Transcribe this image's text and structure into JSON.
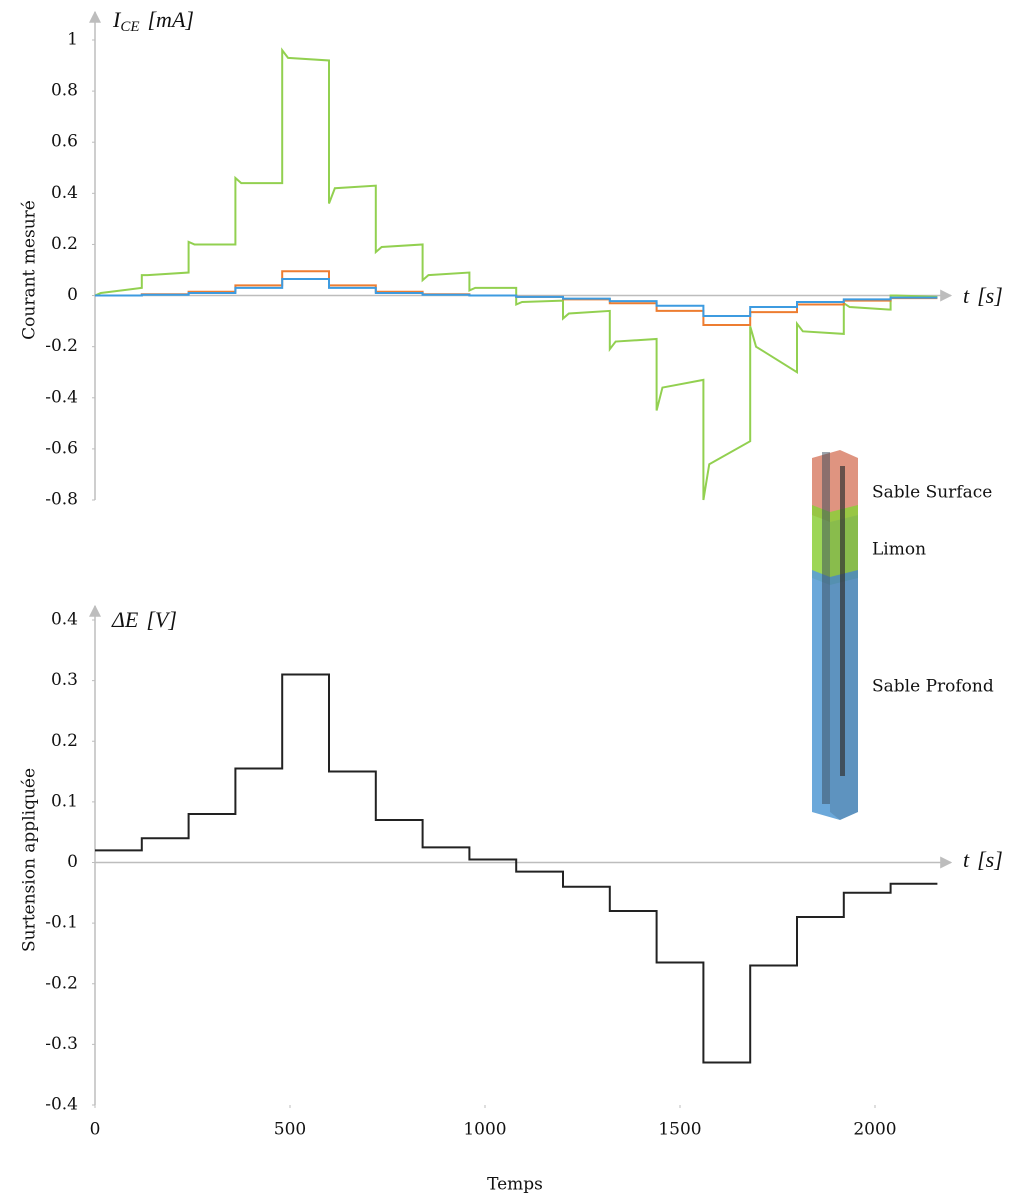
{
  "chart_data": [
    {
      "type": "line",
      "y_title": "Courant mesuré",
      "y_axis_label": {
        "symbol": "I",
        "subscript": "CE",
        "unit": "[mA]"
      },
      "x_axis_label": {
        "symbol": "t",
        "unit": "[s]"
      },
      "xlim": [
        0,
        2200
      ],
      "ylim": [
        -0.8,
        1
      ],
      "yticks": [
        1,
        0.8,
        0.6,
        0.4,
        0.2,
        0,
        -0.2,
        -0.4,
        -0.6,
        -0.8
      ],
      "x": [
        0,
        15,
        120,
        120,
        135,
        240,
        240,
        255,
        360,
        360,
        375,
        480,
        480,
        495,
        600,
        600,
        615,
        720,
        720,
        735,
        840,
        840,
        855,
        960,
        960,
        975,
        1080,
        1080,
        1095,
        1200,
        1200,
        1215,
        1320,
        1320,
        1335,
        1440,
        1440,
        1455,
        1560,
        1560,
        1575,
        1680,
        1680,
        1695,
        1800,
        1800,
        1815,
        1920,
        1920,
        1935,
        2040,
        2040,
        2055,
        2160
      ],
      "series": [
        {
          "name": "Limon",
          "color": "#92d050",
          "values": [
            0,
            0.01,
            0.03,
            0.08,
            0.08,
            0.09,
            0.21,
            0.2,
            0.2,
            0.46,
            0.44,
            0.44,
            0.96,
            0.93,
            0.92,
            0.36,
            0.42,
            0.43,
            0.17,
            0.19,
            0.2,
            0.06,
            0.08,
            0.09,
            0.02,
            0.03,
            0.03,
            -0.035,
            -0.025,
            -0.02,
            -0.09,
            -0.07,
            -0.06,
            -0.21,
            -0.18,
            -0.17,
            -0.45,
            -0.36,
            -0.33,
            -0.8,
            -0.66,
            -0.57,
            -0.12,
            -0.2,
            -0.3,
            -0.11,
            -0.14,
            -0.15,
            -0.03,
            -0.045,
            -0.055,
            0,
            0,
            -0.005
          ]
        },
        {
          "name": "Sable Surface",
          "color": "#ed7d31",
          "values": [
            0,
            0,
            0,
            0.005,
            0.005,
            0.005,
            0.015,
            0.015,
            0.015,
            0.04,
            0.04,
            0.04,
            0.095,
            0.095,
            0.095,
            0.04,
            0.04,
            0.04,
            0.015,
            0.015,
            0.015,
            0.005,
            0.005,
            0.005,
            0,
            0,
            0,
            -0.005,
            -0.005,
            -0.005,
            -0.015,
            -0.015,
            -0.015,
            -0.03,
            -0.03,
            -0.03,
            -0.06,
            -0.06,
            -0.06,
            -0.115,
            -0.115,
            -0.115,
            -0.065,
            -0.065,
            -0.065,
            -0.035,
            -0.035,
            -0.035,
            -0.02,
            -0.02,
            -0.02,
            -0.01,
            -0.01,
            -0.01
          ]
        },
        {
          "name": "Sable Profond",
          "color": "#3d9be0",
          "values": [
            0,
            0,
            0,
            0.003,
            0.003,
            0.003,
            0.01,
            0.01,
            0.01,
            0.03,
            0.03,
            0.03,
            0.065,
            0.065,
            0.065,
            0.03,
            0.03,
            0.03,
            0.01,
            0.01,
            0.01,
            0.003,
            0.003,
            0.003,
            0,
            0,
            0,
            -0.005,
            -0.005,
            -0.005,
            -0.012,
            -0.012,
            -0.012,
            -0.022,
            -0.022,
            -0.022,
            -0.04,
            -0.04,
            -0.04,
            -0.08,
            -0.08,
            -0.08,
            -0.045,
            -0.045,
            -0.045,
            -0.025,
            -0.025,
            -0.025,
            -0.015,
            -0.015,
            -0.015,
            -0.008,
            -0.008,
            -0.008
          ]
        }
      ]
    },
    {
      "type": "line",
      "y_title": "Surtension appliquée",
      "x_title": "Temps",
      "y_axis_label": {
        "symbol": "ΔE",
        "unit": "[V]"
      },
      "x_axis_label": {
        "symbol": "t",
        "unit": "[s]"
      },
      "xlim": [
        0,
        2200
      ],
      "ylim": [
        -0.4,
        0.4
      ],
      "xticks": [
        0,
        500,
        1000,
        1500,
        2000
      ],
      "yticks": [
        0.4,
        0.3,
        0.2,
        0.1,
        0,
        -0.1,
        -0.2,
        -0.3,
        -0.4
      ],
      "color": "#222222",
      "x": [
        0,
        120,
        120,
        240,
        240,
        360,
        360,
        480,
        480,
        600,
        600,
        720,
        720,
        840,
        840,
        960,
        960,
        1080,
        1080,
        1200,
        1200,
        1320,
        1320,
        1440,
        1440,
        1560,
        1560,
        1680,
        1680,
        1800,
        1800,
        1920,
        1920,
        2040,
        2040,
        2160
      ],
      "values": [
        0.02,
        0.02,
        0.04,
        0.04,
        0.08,
        0.08,
        0.155,
        0.155,
        0.31,
        0.31,
        0.15,
        0.15,
        0.07,
        0.07,
        0.025,
        0.025,
        0.005,
        0.005,
        -0.015,
        -0.015,
        -0.04,
        -0.04,
        -0.08,
        -0.08,
        -0.165,
        -0.165,
        -0.33,
        -0.33,
        -0.17,
        -0.17,
        -0.09,
        -0.09,
        -0.05,
        -0.05,
        -0.035,
        -0.035
      ]
    }
  ]
}
